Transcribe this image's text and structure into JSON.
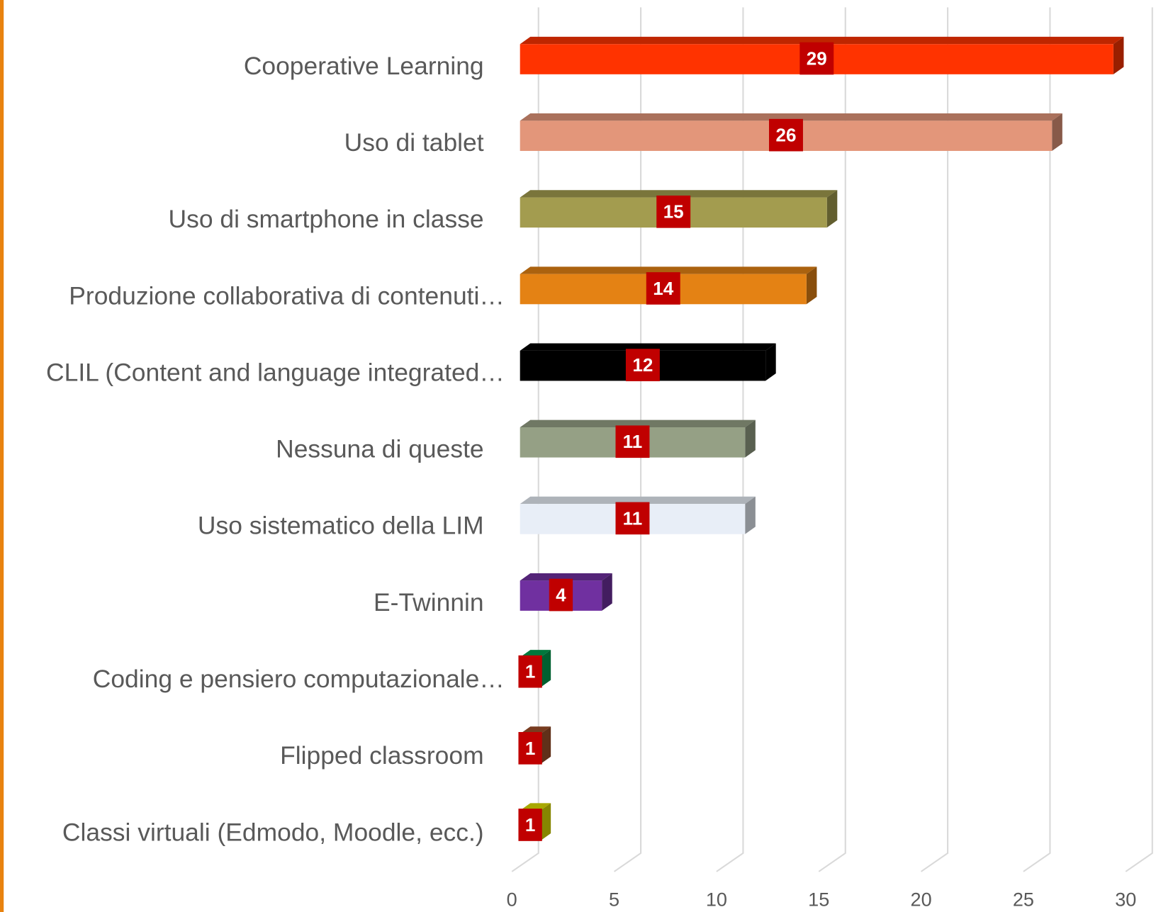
{
  "chart_data": {
    "type": "bar",
    "orientation": "horizontal",
    "categories": [
      "Cooperative Learning",
      "Uso di tablet",
      "Uso di smartphone in classe",
      "Produzione collaborativa di contenuti…",
      "CLIL (Content and language integrated…",
      "Nessuna di queste",
      "Uso sistematico della LIM",
      "E-Twinnin",
      "Coding e pensiero computazionale…",
      "Flipped classroom",
      "Classi virtuali (Edmodo, Moodle, ecc.)"
    ],
    "values": [
      29,
      26,
      15,
      14,
      12,
      11,
      11,
      4,
      1,
      1,
      1
    ],
    "colors": [
      "#ff3300",
      "#e3967a",
      "#a39c4f",
      "#e48214",
      "#000000",
      "#95a085",
      "#e8eef7",
      "#7030a0",
      "#00a050",
      "#a0502a",
      "#e0e000"
    ],
    "label_color": "#c00000",
    "xlim": [
      0,
      30
    ],
    "xticks": [
      0,
      5,
      10,
      15,
      20,
      25,
      30
    ],
    "grid": true
  }
}
